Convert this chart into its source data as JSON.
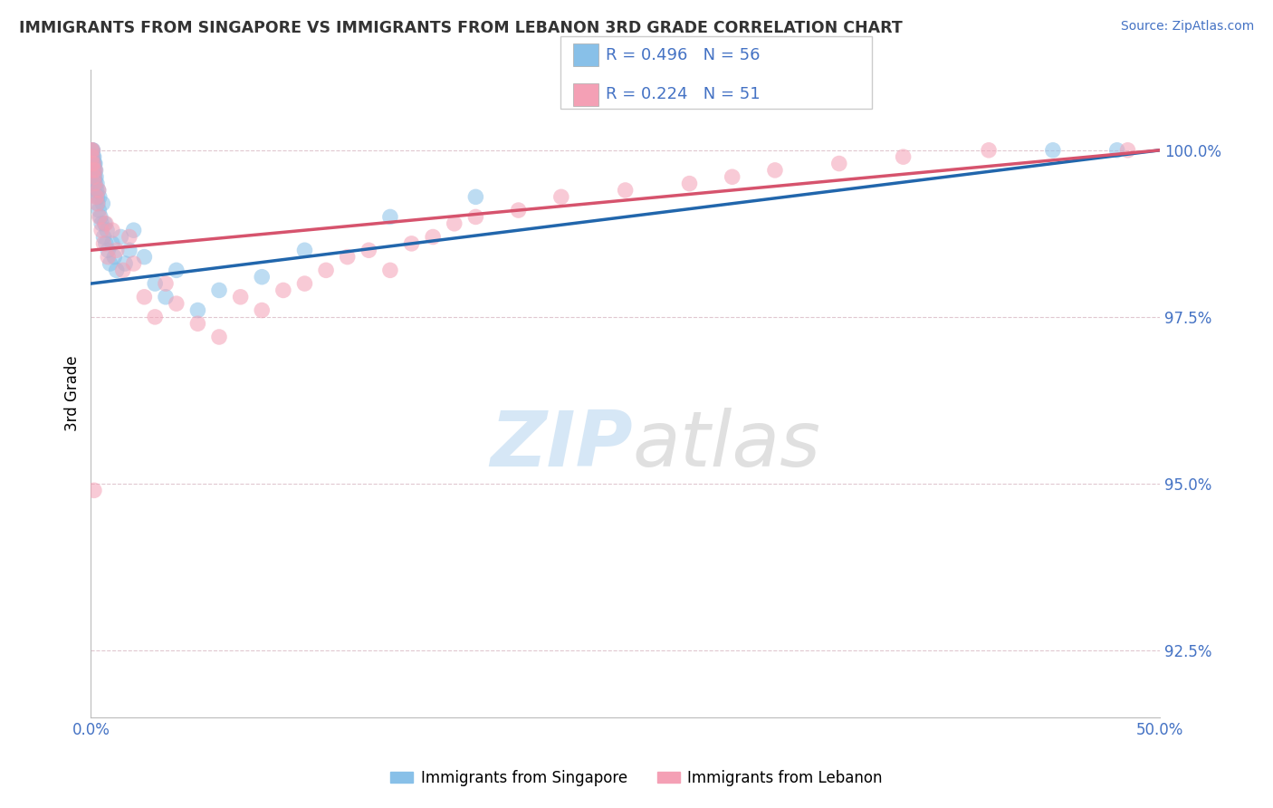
{
  "title": "IMMIGRANTS FROM SINGAPORE VS IMMIGRANTS FROM LEBANON 3RD GRADE CORRELATION CHART",
  "source": "Source: ZipAtlas.com",
  "xlabel_singapore": "Immigrants from Singapore",
  "xlabel_lebanon": "Immigrants from Lebanon",
  "ylabel": "3rd Grade",
  "xlim": [
    0.0,
    50.0
  ],
  "ylim": [
    91.5,
    101.2
  ],
  "yticks": [
    92.5,
    95.0,
    97.5,
    100.0
  ],
  "xtick_vals": [
    0.0,
    50.0
  ],
  "xtick_labels": [
    "0.0%",
    "50.0%"
  ],
  "ytick_labels": [
    "92.5%",
    "95.0%",
    "97.5%",
    "100.0%"
  ],
  "R_singapore": 0.496,
  "N_singapore": 56,
  "R_lebanon": 0.224,
  "N_lebanon": 51,
  "color_singapore": "#88c0e8",
  "color_lebanon": "#f4a0b5",
  "color_trend_singapore": "#2166ac",
  "color_trend_lebanon": "#d6536d",
  "sg_x": [
    0.02,
    0.03,
    0.04,
    0.05,
    0.06,
    0.07,
    0.08,
    0.09,
    0.1,
    0.11,
    0.12,
    0.13,
    0.14,
    0.15,
    0.16,
    0.17,
    0.18,
    0.19,
    0.2,
    0.22,
    0.24,
    0.26,
    0.28,
    0.3,
    0.32,
    0.35,
    0.38,
    0.4,
    0.45,
    0.5,
    0.55,
    0.6,
    0.65,
    0.7,
    0.75,
    0.8,
    0.9,
    1.0,
    1.1,
    1.2,
    1.4,
    1.6,
    1.8,
    2.0,
    2.5,
    3.0,
    3.5,
    4.0,
    5.0,
    6.0,
    8.0,
    10.0,
    14.0,
    18.0,
    45.0,
    48.0
  ],
  "sg_y": [
    99.8,
    99.9,
    100.0,
    99.7,
    100.0,
    99.9,
    99.8,
    100.0,
    99.9,
    99.7,
    99.8,
    99.6,
    99.9,
    99.5,
    99.8,
    99.7,
    99.6,
    99.8,
    99.5,
    99.7,
    99.6,
    99.4,
    99.5,
    99.3,
    99.2,
    99.4,
    99.1,
    99.3,
    99.0,
    98.9,
    99.2,
    98.7,
    98.9,
    98.6,
    98.8,
    98.5,
    98.3,
    98.6,
    98.4,
    98.2,
    98.7,
    98.3,
    98.5,
    98.8,
    98.4,
    98.0,
    97.8,
    98.2,
    97.6,
    97.9,
    98.1,
    98.5,
    99.0,
    99.3,
    100.0,
    100.0
  ],
  "lb_x": [
    0.02,
    0.04,
    0.06,
    0.08,
    0.1,
    0.12,
    0.15,
    0.18,
    0.2,
    0.25,
    0.3,
    0.35,
    0.4,
    0.5,
    0.6,
    0.7,
    0.8,
    1.0,
    1.2,
    1.5,
    1.8,
    2.0,
    2.5,
    3.0,
    3.5,
    4.0,
    5.0,
    6.0,
    7.0,
    8.0,
    9.0,
    10.0,
    11.0,
    12.0,
    13.0,
    14.0,
    15.0,
    16.0,
    17.0,
    18.0,
    20.0,
    22.0,
    25.0,
    28.0,
    30.0,
    32.0,
    35.0,
    38.0,
    42.0,
    48.5,
    0.15
  ],
  "lb_y": [
    100.0,
    99.8,
    99.9,
    100.0,
    99.7,
    99.8,
    99.6,
    99.5,
    99.7,
    99.3,
    99.2,
    99.4,
    99.0,
    98.8,
    98.6,
    98.9,
    98.4,
    98.8,
    98.5,
    98.2,
    98.7,
    98.3,
    97.8,
    97.5,
    98.0,
    97.7,
    97.4,
    97.2,
    97.8,
    97.6,
    97.9,
    98.0,
    98.2,
    98.4,
    98.5,
    98.2,
    98.6,
    98.7,
    98.9,
    99.0,
    99.1,
    99.3,
    99.4,
    99.5,
    99.6,
    99.7,
    99.8,
    99.9,
    100.0,
    100.0,
    94.9
  ]
}
